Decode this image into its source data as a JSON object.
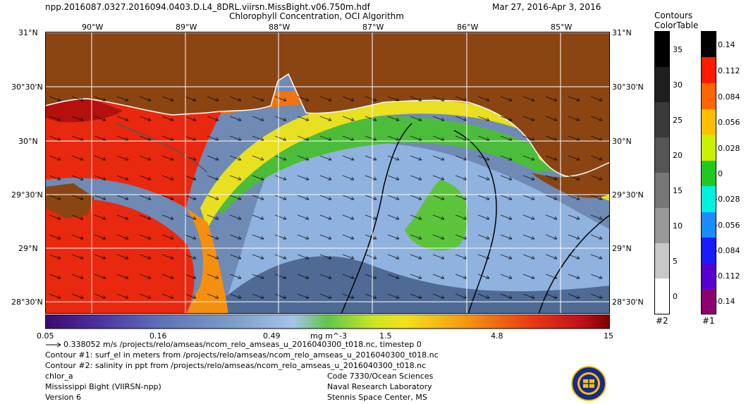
{
  "header": {
    "filename": "npp.2016087.0327.2016094.0403.D.L4_8DRL.viirsn.MissBight.v06.750m.hdf",
    "product": "Chlorophyll Concentration, OCI Algorithm",
    "date_range": "Mar 27, 2016-Apr  3, 2016"
  },
  "map": {
    "lon_labels": [
      "90°W",
      "89°W",
      "88°W",
      "87°W",
      "86°W",
      "85°W"
    ],
    "lat_labels_left": [
      "31°N",
      "30°30'N",
      "30°N",
      "29°30'N",
      "29°N",
      "28°30'N"
    ],
    "lat_labels_right": [
      "31°N",
      "30°30'N",
      "30°N",
      "29°30'N",
      "29°N",
      "28°30'N"
    ],
    "colors": {
      "land": "#8B4513",
      "ocean_low": "#6d86ad",
      "ocean_high": "#e8200f"
    }
  },
  "colorbar": {
    "tick_labels": [
      "0.05",
      "0.16",
      "0.49",
      "1.5",
      "4.8",
      "15"
    ],
    "units": "mg m^-3",
    "stops": [
      "#3d0a6b",
      "#4a2f9e",
      "#5d6fb9",
      "#7d9dc7",
      "#a6c4e8",
      "#60c64a",
      "#c8e623",
      "#f2e11a",
      "#f59b12",
      "#e93b12",
      "#c0101a",
      "#7a0000"
    ]
  },
  "contours_legend": {
    "title": [
      "Contours",
      "ColorTable"
    ],
    "labels": [
      "35",
      "30",
      "25",
      "20",
      "15",
      "10",
      "5",
      "0"
    ],
    "greys": [
      "#000000",
      "#1e1e1e",
      "#3a3a3a",
      "#555555",
      "#777777",
      "#999999",
      "#c8c8c8",
      "#ffffff"
    ],
    "footer": "#2"
  },
  "colortable_legend": {
    "labels": [
      "0.14",
      "0.112",
      "0.084",
      "0.056",
      "0.028",
      "0",
      "-0.028",
      "-0.056",
      "-0.084",
      "-0.112",
      "-0.14"
    ],
    "colors": [
      "#000000",
      "#ff1a00",
      "#ff6600",
      "#ffbf00",
      "#c8f000",
      "#22c822",
      "#00f0e0",
      "#1a8cff",
      "#1a1aff",
      "#5500cc",
      "#8c0070"
    ],
    "footer": "#1"
  },
  "info": {
    "vector_line": "0.338052 m/s /projects/relo/amseas/ncom_relo_amseas_u_2016040300_t018.nc, timestep 0",
    "contour1": "Contour #1: surf_el in meters from /projects/relo/amseas/ncom_relo_amseas_u_2016040300_t018.nc",
    "contour2": "Contour #2: salinity in ppt from /projects/relo/amseas/ncom_relo_amseas_u_2016040300_t018.nc",
    "product_name": "chlor_a",
    "region": "Mississippi Bight (VIIRSN-npp)",
    "version": "Version 6",
    "code": "Code 7330/Ocean Sciences",
    "lab": "Naval Research Laboratory",
    "location": "Stennis Space Center, MS"
  }
}
